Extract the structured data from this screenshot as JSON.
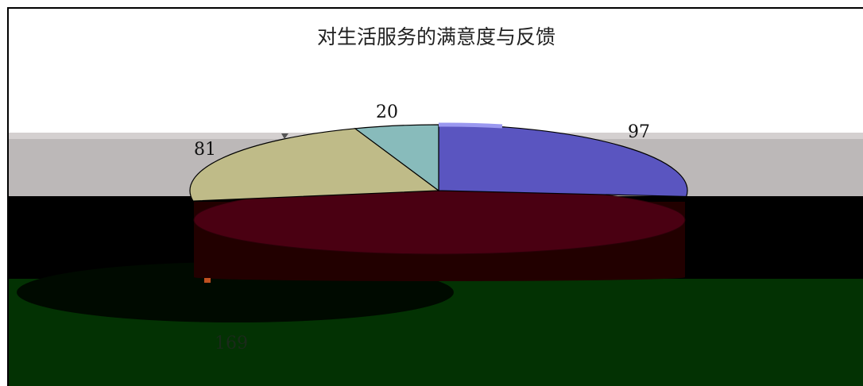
{
  "chart_data": {
    "type": "pie",
    "title": "对生活服务的满意度与反馈",
    "slices": [
      {
        "label": "97",
        "value": 97,
        "color": "#5a55c0"
      },
      {
        "label": "169",
        "value": 169,
        "color": "#4a0012"
      },
      {
        "label": "81",
        "value": 81,
        "color": "#bfbb88"
      },
      {
        "label": "20",
        "value": 20,
        "color": "#88bbbb"
      }
    ],
    "legend": "none",
    "style": "3d-exploded-view"
  }
}
